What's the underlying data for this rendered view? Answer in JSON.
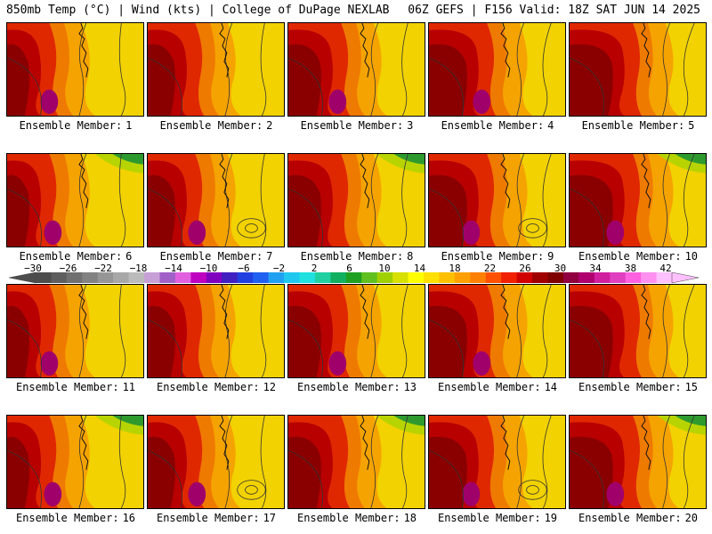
{
  "header": {
    "left": "850mb Temp (°C) | Wind (kts) | College of DuPage NEXLAB",
    "right": "06Z GEFS | F156 Valid: 18Z SAT JUN 14 2025"
  },
  "member_prefix": "Ensemble Member:",
  "panels": [
    {
      "member": "1",
      "variant": 0
    },
    {
      "member": "2",
      "variant": 1
    },
    {
      "member": "3",
      "variant": 2
    },
    {
      "member": "4",
      "variant": 3
    },
    {
      "member": "5",
      "variant": 4
    },
    {
      "member": "6",
      "variant": 5
    },
    {
      "member": "7",
      "variant": 6
    },
    {
      "member": "8",
      "variant": 7
    },
    {
      "member": "9",
      "variant": 8
    },
    {
      "member": "10",
      "variant": 9
    },
    {
      "member": "11",
      "variant": 0
    },
    {
      "member": "12",
      "variant": 1
    },
    {
      "member": "13",
      "variant": 2
    },
    {
      "member": "14",
      "variant": 3
    },
    {
      "member": "15",
      "variant": 4
    },
    {
      "member": "16",
      "variant": 5
    },
    {
      "member": "17",
      "variant": 6
    },
    {
      "member": "18",
      "variant": 7
    },
    {
      "member": "19",
      "variant": 8
    },
    {
      "member": "20",
      "variant": 9
    }
  ],
  "colorbar": {
    "labels": [
      "−30",
      "−26",
      "−22",
      "−18",
      "−14",
      "−10",
      "−6",
      "−2",
      "2",
      "6",
      "10",
      "14",
      "18",
      "22",
      "26",
      "30",
      "34",
      "38",
      "42"
    ],
    "colors": [
      "#4d4d4d",
      "#5e5e5e",
      "#707070",
      "#828282",
      "#969696",
      "#a8a8a8",
      "#bbbbbb",
      "#c8a0d8",
      "#a060c8",
      "#e060e0",
      "#c000c0",
      "#8000c0",
      "#4020c0",
      "#2040e0",
      "#2060f0",
      "#20a0f0",
      "#20c8f0",
      "#20e0e0",
      "#20d0a0",
      "#10b060",
      "#20a020",
      "#60c020",
      "#a0d000",
      "#d8e000",
      "#ffff00",
      "#ffe000",
      "#ffc000",
      "#ffa000",
      "#ff8000",
      "#ff5000",
      "#f02000",
      "#d00000",
      "#a00000",
      "#800000",
      "#900040",
      "#b00070",
      "#d020a0",
      "#e040c0",
      "#ff60e0",
      "#ff90f0",
      "#ffc0ff"
    ]
  },
  "palette": {
    "yellow": "#f2d200",
    "orange": "#f5a300",
    "darkorange": "#ef7a00",
    "red": "#e02800",
    "darkred": "#b80000",
    "maroon": "#8a0000",
    "magenta": "#a0006a",
    "green": "#2e9a2e",
    "lime": "#b8d400"
  }
}
